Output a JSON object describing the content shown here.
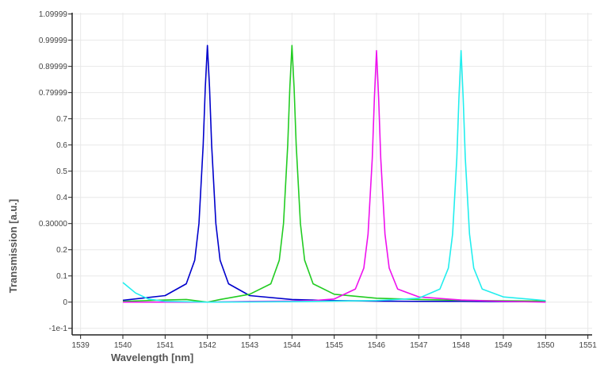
{
  "chart_data": {
    "type": "line",
    "xlabel": "Wavelength [nm]",
    "ylabel": "Transmission [a.u.]",
    "xlim": [
      1538.8,
      1551.1
    ],
    "ylim": [
      -0.125,
      1.105
    ],
    "grid": true,
    "x_ticks": [
      {
        "v": 1539,
        "label": "1539"
      },
      {
        "v": 1540,
        "label": "1540"
      },
      {
        "v": 1541,
        "label": "1541"
      },
      {
        "v": 1542,
        "label": "1542"
      },
      {
        "v": 1543,
        "label": "1543"
      },
      {
        "v": 1544,
        "label": "1544"
      },
      {
        "v": 1545,
        "label": "1545"
      },
      {
        "v": 1546,
        "label": "1546"
      },
      {
        "v": 1547,
        "label": "1547"
      },
      {
        "v": 1548,
        "label": "1548"
      },
      {
        "v": 1549,
        "label": "1549"
      },
      {
        "v": 1550,
        "label": "1550"
      },
      {
        "v": 1551,
        "label": "1551"
      }
    ],
    "y_ticks": [
      {
        "v": -0.1,
        "label": "-1e-1"
      },
      {
        "v": 0,
        "label": "0"
      },
      {
        "v": 0.1,
        "label": "0.1"
      },
      {
        "v": 0.2,
        "label": "0.2"
      },
      {
        "v": 0.3,
        "label": "0.30000"
      },
      {
        "v": 0.4,
        "label": "0.4"
      },
      {
        "v": 0.5,
        "label": "0.5"
      },
      {
        "v": 0.6,
        "label": "0.6"
      },
      {
        "v": 0.7,
        "label": "0.7"
      },
      {
        "v": 0.8,
        "label": "0.79999"
      },
      {
        "v": 0.9,
        "label": "0.89999"
      },
      {
        "v": 1.0,
        "label": "0.99999"
      },
      {
        "v": 1.1,
        "label": "1.09999"
      }
    ],
    "series": [
      {
        "color": "#0000cc",
        "x": [
          1540,
          1541,
          1541.5,
          1541.7,
          1541.8,
          1541.9,
          1541.95,
          1542,
          1542.05,
          1542.1,
          1542.2,
          1542.3,
          1542.5,
          1543,
          1544,
          1545,
          1546,
          1547,
          1548,
          1549,
          1550
        ],
        "y": [
          0.007,
          0.025,
          0.07,
          0.16,
          0.3,
          0.6,
          0.82,
          0.98,
          0.82,
          0.6,
          0.3,
          0.16,
          0.07,
          0.025,
          0.01,
          0.006,
          0.004,
          0.003,
          0.003,
          0.002,
          0.002
        ]
      },
      {
        "color": "#22cc22",
        "x": [
          1540,
          1541,
          1541.5,
          1542,
          1542.3,
          1543,
          1543.5,
          1543.7,
          1543.8,
          1543.9,
          1543.95,
          1544,
          1544.05,
          1544.1,
          1544.2,
          1544.3,
          1544.5,
          1545,
          1546,
          1547,
          1548,
          1549,
          1550
        ],
        "y": [
          0.003,
          0.008,
          0.01,
          0.0,
          0.01,
          0.03,
          0.07,
          0.16,
          0.3,
          0.6,
          0.82,
          0.98,
          0.82,
          0.6,
          0.3,
          0.16,
          0.07,
          0.03,
          0.015,
          0.01,
          0.007,
          0.005,
          0.004
        ]
      },
      {
        "color": "#ee11ee",
        "x": [
          1540,
          1541,
          1542,
          1543,
          1544,
          1544.5,
          1545,
          1545.5,
          1545.7,
          1545.8,
          1545.9,
          1545.95,
          1546,
          1546.05,
          1546.1,
          1546.2,
          1546.3,
          1546.5,
          1547,
          1548,
          1549,
          1550
        ],
        "y": [
          0.0,
          0.0,
          0.0,
          0.003,
          0.004,
          0.006,
          0.012,
          0.05,
          0.13,
          0.26,
          0.55,
          0.78,
          0.96,
          0.78,
          0.55,
          0.26,
          0.13,
          0.05,
          0.02,
          0.008,
          0.003,
          0.0
        ]
      },
      {
        "color": "#22eeee",
        "x": [
          1540,
          1540.3,
          1540.6,
          1541,
          1542,
          1543,
          1544,
          1545,
          1546,
          1547,
          1547.5,
          1547.7,
          1547.8,
          1547.9,
          1547.95,
          1548,
          1548.05,
          1548.1,
          1548.2,
          1548.3,
          1548.5,
          1549,
          1550
        ],
        "y": [
          0.075,
          0.035,
          0.012,
          0.003,
          0.0,
          0.001,
          0.002,
          0.004,
          0.006,
          0.015,
          0.05,
          0.13,
          0.26,
          0.55,
          0.78,
          0.96,
          0.78,
          0.55,
          0.26,
          0.13,
          0.05,
          0.02,
          0.006
        ]
      }
    ]
  }
}
